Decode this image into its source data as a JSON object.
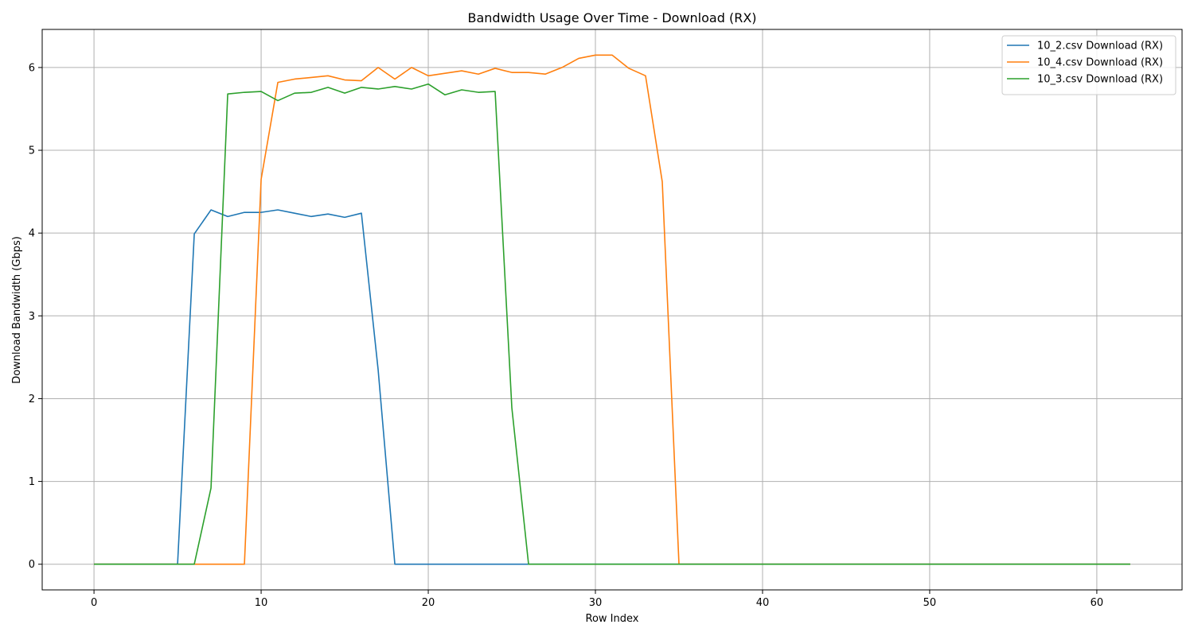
{
  "chart_data": {
    "type": "line",
    "title": "Bandwidth Usage Over Time - Download (RX)",
    "xlabel": "Row Index",
    "ylabel": "Download Bandwidth (Gbps)",
    "xlim": [
      -3.1,
      65.1
    ],
    "ylim": [
      -0.31,
      6.46
    ],
    "xticks": [
      0,
      10,
      20,
      30,
      40,
      50,
      60
    ],
    "yticks": [
      0,
      1,
      2,
      3,
      4,
      5,
      6
    ],
    "grid": true,
    "legend_position": "top-right",
    "series": [
      {
        "name": "10_2.csv Download (RX)",
        "color": "#1f77b4",
        "x_start": 0,
        "values": [
          0,
          0,
          0,
          0,
          0,
          0,
          3.99,
          4.28,
          4.2,
          4.25,
          4.25,
          4.28,
          4.24,
          4.2,
          4.23,
          4.19,
          4.24,
          2.35,
          0,
          0,
          0,
          0,
          0,
          0,
          0,
          0,
          0,
          0,
          0,
          0,
          0,
          0,
          0,
          0,
          0,
          0,
          0,
          0,
          0,
          0,
          0,
          0,
          0,
          0,
          0,
          0,
          0,
          0,
          0,
          0,
          0,
          0,
          0,
          0,
          0,
          0,
          0,
          0,
          0,
          0,
          0,
          0,
          0
        ]
      },
      {
        "name": "10_4.csv Download (RX)",
        "color": "#ff7f0e",
        "x_start": 0,
        "values": [
          0,
          0,
          0,
          0,
          0,
          0,
          0,
          0,
          0,
          0,
          4.65,
          5.82,
          5.86,
          5.88,
          5.9,
          5.85,
          5.84,
          6.0,
          5.86,
          6.0,
          5.9,
          5.93,
          5.96,
          5.92,
          5.99,
          5.94,
          5.94,
          5.92,
          6.0,
          6.11,
          6.15,
          6.15,
          5.99,
          5.9,
          4.62,
          0,
          0,
          0,
          0,
          0,
          0,
          0,
          0,
          0,
          0,
          0,
          0,
          0,
          0,
          0,
          0,
          0,
          0,
          0,
          0,
          0,
          0,
          0,
          0,
          0,
          0,
          0,
          0
        ]
      },
      {
        "name": "10_3.csv Download (RX)",
        "color": "#2ca02c",
        "x_start": 0,
        "values": [
          0,
          0,
          0,
          0,
          0,
          0,
          0,
          0.92,
          5.68,
          5.7,
          5.71,
          5.6,
          5.69,
          5.7,
          5.76,
          5.69,
          5.76,
          5.74,
          5.77,
          5.74,
          5.8,
          5.67,
          5.73,
          5.7,
          5.71,
          1.89,
          0,
          0,
          0,
          0,
          0,
          0,
          0,
          0,
          0,
          0,
          0,
          0,
          0,
          0,
          0,
          0,
          0,
          0,
          0,
          0,
          0,
          0,
          0,
          0,
          0,
          0,
          0,
          0,
          0,
          0,
          0,
          0,
          0,
          0,
          0,
          0,
          0
        ]
      }
    ]
  }
}
